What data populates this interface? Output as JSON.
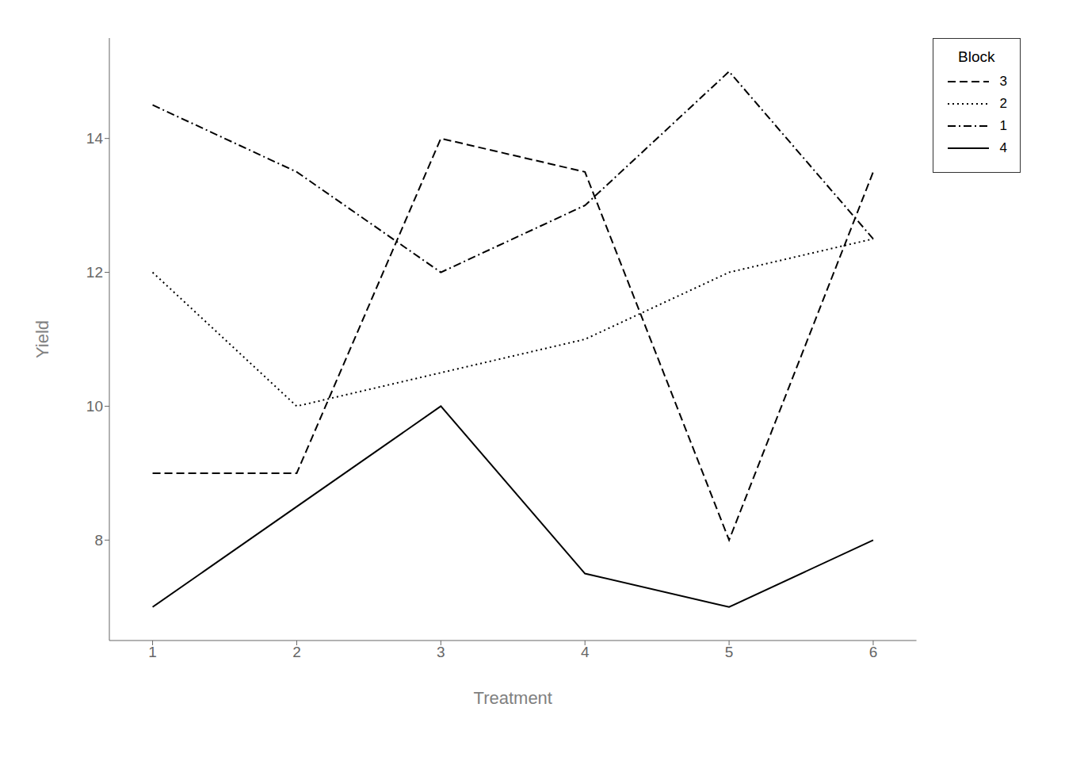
{
  "chart_data": {
    "type": "line",
    "xlabel": "Treatment",
    "ylabel": "Yield",
    "x": [
      1,
      2,
      3,
      4,
      5,
      6
    ],
    "series": [
      {
        "name": "3",
        "color": "black",
        "line_style": "dashed",
        "values": [
          9.0,
          9.0,
          14.0,
          13.5,
          8.0,
          13.5
        ]
      },
      {
        "name": "2",
        "color": "black",
        "line_style": "dotted",
        "values": [
          12.0,
          10.0,
          10.5,
          11.0,
          12.0,
          12.5
        ]
      },
      {
        "name": "1",
        "color": "black",
        "line_style": "dashdot",
        "values": [
          14.5,
          13.5,
          12.0,
          13.0,
          15.0,
          12.5
        ]
      },
      {
        "name": "4",
        "color": "black",
        "line_style": "solid",
        "values": [
          7.0,
          8.5,
          10.0,
          7.5,
          7.0,
          8.0
        ]
      }
    ],
    "xlim": [
      0.7,
      6.3
    ],
    "ylim": [
      6.5,
      15.5
    ],
    "xticks": [
      1,
      2,
      3,
      4,
      5,
      6
    ],
    "yticks": [
      8,
      10,
      12,
      14
    ],
    "legend": "upper right",
    "legend_title": "Block"
  }
}
